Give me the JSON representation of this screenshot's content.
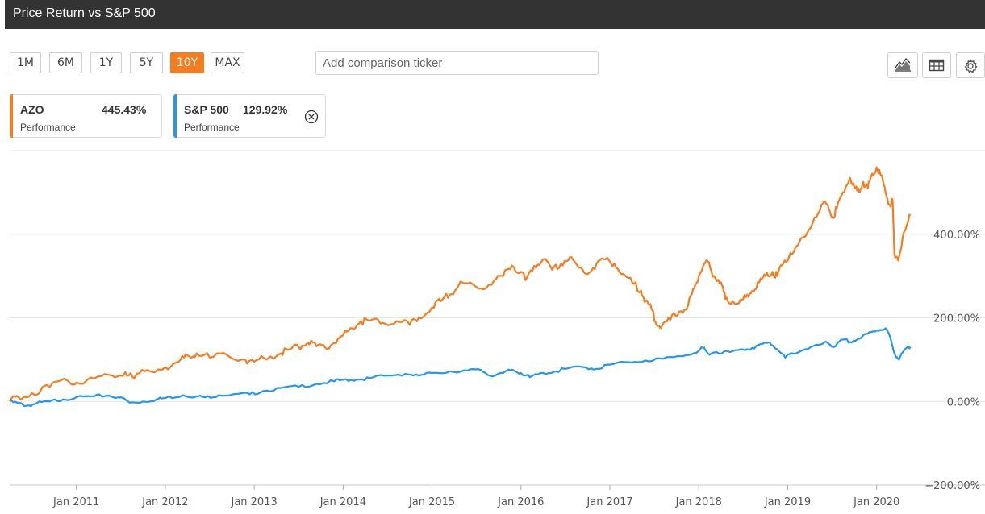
{
  "header": {
    "title": "Price Return vs S&P 500"
  },
  "range_buttons": [
    {
      "label": "1M",
      "active": false
    },
    {
      "label": "6M",
      "active": false
    },
    {
      "label": "1Y",
      "active": false
    },
    {
      "label": "5Y",
      "active": false
    },
    {
      "label": "10Y",
      "active": true
    },
    {
      "label": "MAX",
      "active": false
    }
  ],
  "compare": {
    "placeholder": "Add comparison ticker",
    "value": ""
  },
  "toolbar": {
    "chart_icon": "mountain-chart-icon",
    "table_icon": "table-icon",
    "settings_icon": "gear-icon"
  },
  "legend": [
    {
      "ticker": "AZO",
      "value": "445.43%",
      "sub": "Performance",
      "color": "#f57c1f"
    },
    {
      "ticker": "S&P 500",
      "value": "129.92%",
      "sub": "Performance",
      "color": "#2196f3",
      "removable": true
    }
  ],
  "chart_data": {
    "type": "line",
    "title": "Price Return vs S&P 500",
    "xlabel": "",
    "ylabel": "",
    "x_range": [
      2010.25,
      2020.42
    ],
    "ylim": [
      -200,
      600
    ],
    "y_ticks": [
      -200,
      0,
      200,
      400
    ],
    "y_tick_labels": [
      "−200.00%",
      "0.00%",
      "200.00%",
      "400.00%"
    ],
    "x_ticks": [
      2011,
      2012,
      2013,
      2014,
      2015,
      2016,
      2017,
      2018,
      2019,
      2020
    ],
    "x_tick_labels": [
      "Jan 2011",
      "Jan 2012",
      "Jan 2013",
      "Jan 2014",
      "Jan 2015",
      "Jan 2016",
      "Jan 2017",
      "Jan 2018",
      "Jan 2019",
      "Jan 2020"
    ],
    "grid": true,
    "series": [
      {
        "name": "AZO",
        "color": "#f57c1f",
        "points": [
          [
            2010.25,
            0
          ],
          [
            2010.35,
            10
          ],
          [
            2010.5,
            20
          ],
          [
            2010.7,
            35
          ],
          [
            2010.9,
            50
          ],
          [
            2011.0,
            45
          ],
          [
            2011.2,
            55
          ],
          [
            2011.4,
            62
          ],
          [
            2011.55,
            70
          ],
          [
            2011.65,
            55
          ],
          [
            2011.8,
            75
          ],
          [
            2012.0,
            82
          ],
          [
            2012.15,
            95
          ],
          [
            2012.25,
            110
          ],
          [
            2012.35,
            115
          ],
          [
            2012.5,
            105
          ],
          [
            2012.7,
            110
          ],
          [
            2012.9,
            100
          ],
          [
            2013.0,
            95
          ],
          [
            2013.1,
            105
          ],
          [
            2013.3,
            115
          ],
          [
            2013.4,
            125
          ],
          [
            2013.5,
            130
          ],
          [
            2013.6,
            140
          ],
          [
            2013.7,
            132
          ],
          [
            2013.8,
            128
          ],
          [
            2013.9,
            140
          ],
          [
            2014.0,
            158
          ],
          [
            2014.1,
            175
          ],
          [
            2014.2,
            192
          ],
          [
            2014.3,
            193
          ],
          [
            2014.45,
            188
          ],
          [
            2014.6,
            192
          ],
          [
            2014.75,
            183
          ],
          [
            2014.85,
            200
          ],
          [
            2015.0,
            225
          ],
          [
            2015.1,
            240
          ],
          [
            2015.2,
            255
          ],
          [
            2015.3,
            278
          ],
          [
            2015.4,
            282
          ],
          [
            2015.55,
            270
          ],
          [
            2015.7,
            290
          ],
          [
            2015.8,
            300
          ],
          [
            2015.9,
            325
          ],
          [
            2016.0,
            310
          ],
          [
            2016.05,
            290
          ],
          [
            2016.15,
            325
          ],
          [
            2016.25,
            340
          ],
          [
            2016.35,
            315
          ],
          [
            2016.45,
            330
          ],
          [
            2016.55,
            345
          ],
          [
            2016.65,
            320
          ],
          [
            2016.75,
            305
          ],
          [
            2016.85,
            330
          ],
          [
            2016.95,
            340
          ],
          [
            2017.05,
            330
          ],
          [
            2017.15,
            305
          ],
          [
            2017.25,
            285
          ],
          [
            2017.35,
            265
          ],
          [
            2017.4,
            240
          ],
          [
            2017.47,
            220
          ],
          [
            2017.52,
            185
          ],
          [
            2017.58,
            178
          ],
          [
            2017.68,
            195
          ],
          [
            2017.78,
            215
          ],
          [
            2017.88,
            230
          ],
          [
            2017.95,
            270
          ],
          [
            2018.0,
            300
          ],
          [
            2018.05,
            325
          ],
          [
            2018.1,
            335
          ],
          [
            2018.17,
            300
          ],
          [
            2018.25,
            285
          ],
          [
            2018.3,
            245
          ],
          [
            2018.38,
            240
          ],
          [
            2018.45,
            235
          ],
          [
            2018.53,
            250
          ],
          [
            2018.6,
            265
          ],
          [
            2018.68,
            285
          ],
          [
            2018.75,
            300
          ],
          [
            2018.83,
            310
          ],
          [
            2018.88,
            300
          ],
          [
            2018.95,
            330
          ],
          [
            2019.03,
            355
          ],
          [
            2019.12,
            375
          ],
          [
            2019.2,
            395
          ],
          [
            2019.3,
            440
          ],
          [
            2019.4,
            475
          ],
          [
            2019.45,
            470
          ],
          [
            2019.5,
            440
          ],
          [
            2019.55,
            460
          ],
          [
            2019.62,
            500
          ],
          [
            2019.7,
            535
          ],
          [
            2019.75,
            510
          ],
          [
            2019.8,
            500
          ],
          [
            2019.85,
            525
          ],
          [
            2019.9,
            510
          ],
          [
            2019.95,
            545
          ],
          [
            2020.0,
            560
          ],
          [
            2020.05,
            540
          ],
          [
            2020.1,
            500
          ],
          [
            2020.15,
            470
          ],
          [
            2020.18,
            480
          ],
          [
            2020.2,
            350
          ],
          [
            2020.25,
            345
          ],
          [
            2020.32,
            410
          ],
          [
            2020.38,
            445
          ]
        ]
      },
      {
        "name": "S&P 500",
        "color": "#2196f3",
        "points": [
          [
            2010.25,
            0
          ],
          [
            2010.35,
            -5
          ],
          [
            2010.45,
            -10
          ],
          [
            2010.55,
            -5
          ],
          [
            2010.7,
            0
          ],
          [
            2010.85,
            5
          ],
          [
            2011.0,
            10
          ],
          [
            2011.2,
            12
          ],
          [
            2011.35,
            14
          ],
          [
            2011.5,
            10
          ],
          [
            2011.6,
            -3
          ],
          [
            2011.75,
            0
          ],
          [
            2011.9,
            5
          ],
          [
            2012.0,
            8
          ],
          [
            2012.2,
            15
          ],
          [
            2012.35,
            12
          ],
          [
            2012.45,
            10
          ],
          [
            2012.6,
            15
          ],
          [
            2012.8,
            18
          ],
          [
            2012.95,
            17
          ],
          [
            2013.1,
            25
          ],
          [
            2013.3,
            32
          ],
          [
            2013.5,
            35
          ],
          [
            2013.7,
            42
          ],
          [
            2013.9,
            48
          ],
          [
            2014.0,
            52
          ],
          [
            2014.15,
            52
          ],
          [
            2014.3,
            56
          ],
          [
            2014.5,
            62
          ],
          [
            2014.7,
            66
          ],
          [
            2014.85,
            62
          ],
          [
            2015.0,
            68
          ],
          [
            2015.2,
            72
          ],
          [
            2015.4,
            74
          ],
          [
            2015.55,
            75
          ],
          [
            2015.65,
            62
          ],
          [
            2015.8,
            68
          ],
          [
            2015.9,
            76
          ],
          [
            2016.0,
            68
          ],
          [
            2016.1,
            58
          ],
          [
            2016.25,
            68
          ],
          [
            2016.4,
            72
          ],
          [
            2016.5,
            78
          ],
          [
            2016.7,
            82
          ],
          [
            2016.85,
            78
          ],
          [
            2017.0,
            88
          ],
          [
            2017.2,
            94
          ],
          [
            2017.4,
            98
          ],
          [
            2017.6,
            102
          ],
          [
            2017.8,
            108
          ],
          [
            2017.95,
            116
          ],
          [
            2018.05,
            128
          ],
          [
            2018.1,
            115
          ],
          [
            2018.2,
            118
          ],
          [
            2018.35,
            118
          ],
          [
            2018.5,
            124
          ],
          [
            2018.6,
            128
          ],
          [
            2018.72,
            138
          ],
          [
            2018.8,
            140
          ],
          [
            2018.88,
            125
          ],
          [
            2018.97,
            105
          ],
          [
            2019.05,
            115
          ],
          [
            2019.2,
            125
          ],
          [
            2019.35,
            135
          ],
          [
            2019.45,
            140
          ],
          [
            2019.52,
            130
          ],
          [
            2019.62,
            148
          ],
          [
            2019.7,
            142
          ],
          [
            2019.8,
            150
          ],
          [
            2019.9,
            162
          ],
          [
            2020.0,
            170
          ],
          [
            2020.1,
            175
          ],
          [
            2020.14,
            160
          ],
          [
            2020.2,
            115
          ],
          [
            2020.25,
            100
          ],
          [
            2020.32,
            125
          ],
          [
            2020.38,
            130
          ]
        ]
      }
    ]
  }
}
